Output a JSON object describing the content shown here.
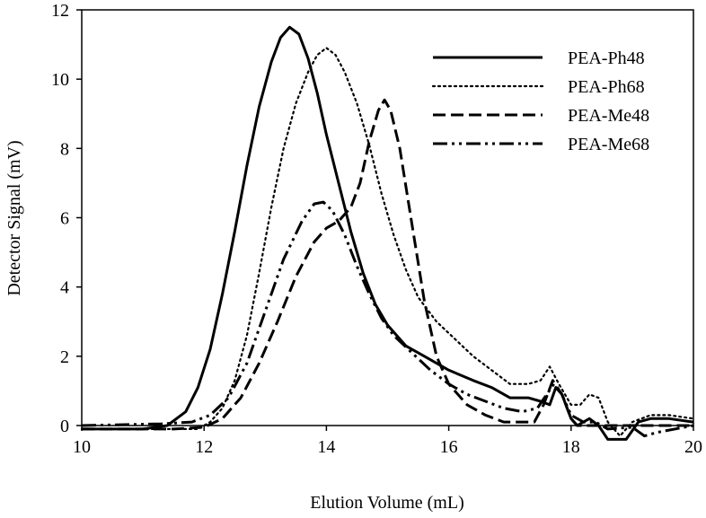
{
  "chart_data": {
    "type": "line",
    "xlabel": "Elution Volume (mL)",
    "ylabel": "Detector Signal (mV)",
    "xlim": [
      10,
      20
    ],
    "ylim": [
      0,
      12
    ],
    "xticks": [
      "10",
      "12",
      "14",
      "16",
      "18",
      "20"
    ],
    "yticks": [
      "0",
      "2",
      "4",
      "6",
      "8",
      "10",
      "12"
    ],
    "grid": false,
    "legend": "top-right",
    "series": [
      {
        "name": "PEA-Ph48",
        "style": "solid",
        "color": "#000000",
        "points": [
          [
            10.0,
            -0.1
          ],
          [
            11.0,
            -0.1
          ],
          [
            11.4,
            0.0
          ],
          [
            11.7,
            0.4
          ],
          [
            11.9,
            1.1
          ],
          [
            12.1,
            2.2
          ],
          [
            12.3,
            3.8
          ],
          [
            12.5,
            5.6
          ],
          [
            12.7,
            7.5
          ],
          [
            12.9,
            9.2
          ],
          [
            13.1,
            10.5
          ],
          [
            13.25,
            11.2
          ],
          [
            13.4,
            11.5
          ],
          [
            13.55,
            11.3
          ],
          [
            13.7,
            10.6
          ],
          [
            13.85,
            9.6
          ],
          [
            14.0,
            8.4
          ],
          [
            14.2,
            7.0
          ],
          [
            14.4,
            5.6
          ],
          [
            14.6,
            4.4
          ],
          [
            14.8,
            3.5
          ],
          [
            15.0,
            2.9
          ],
          [
            15.3,
            2.3
          ],
          [
            15.6,
            2.0
          ],
          [
            16.0,
            1.6
          ],
          [
            16.4,
            1.3
          ],
          [
            16.7,
            1.1
          ],
          [
            17.0,
            0.8
          ],
          [
            17.3,
            0.8
          ],
          [
            17.5,
            0.7
          ],
          [
            17.65,
            0.6
          ],
          [
            17.75,
            1.1
          ],
          [
            17.85,
            0.9
          ],
          [
            18.0,
            0.2
          ],
          [
            18.1,
            0.0
          ],
          [
            18.3,
            0.2
          ],
          [
            18.45,
            0.0
          ],
          [
            18.6,
            -0.4
          ],
          [
            18.9,
            -0.4
          ],
          [
            19.1,
            0.1
          ],
          [
            19.3,
            0.2
          ],
          [
            19.6,
            0.2
          ],
          [
            20.0,
            0.1
          ]
        ]
      },
      {
        "name": "PEA-Ph68",
        "style": "dotted",
        "color": "#000000",
        "points": [
          [
            10.0,
            -0.1
          ],
          [
            11.5,
            -0.1
          ],
          [
            11.9,
            -0.1
          ],
          [
            12.1,
            0.1
          ],
          [
            12.3,
            0.5
          ],
          [
            12.5,
            1.3
          ],
          [
            12.7,
            2.6
          ],
          [
            12.9,
            4.4
          ],
          [
            13.1,
            6.3
          ],
          [
            13.3,
            8.0
          ],
          [
            13.5,
            9.3
          ],
          [
            13.7,
            10.2
          ],
          [
            13.85,
            10.7
          ],
          [
            14.0,
            10.9
          ],
          [
            14.15,
            10.7
          ],
          [
            14.3,
            10.2
          ],
          [
            14.5,
            9.3
          ],
          [
            14.7,
            8.1
          ],
          [
            14.9,
            6.7
          ],
          [
            15.1,
            5.5
          ],
          [
            15.3,
            4.5
          ],
          [
            15.5,
            3.7
          ],
          [
            15.8,
            3.0
          ],
          [
            16.1,
            2.5
          ],
          [
            16.4,
            2.0
          ],
          [
            16.7,
            1.6
          ],
          [
            17.0,
            1.2
          ],
          [
            17.3,
            1.2
          ],
          [
            17.5,
            1.3
          ],
          [
            17.65,
            1.7
          ],
          [
            17.8,
            1.2
          ],
          [
            18.0,
            0.6
          ],
          [
            18.15,
            0.6
          ],
          [
            18.3,
            0.9
          ],
          [
            18.45,
            0.8
          ],
          [
            18.6,
            0.1
          ],
          [
            18.8,
            -0.3
          ],
          [
            19.0,
            0.1
          ],
          [
            19.3,
            0.3
          ],
          [
            19.6,
            0.3
          ],
          [
            20.0,
            0.2
          ]
        ]
      },
      {
        "name": "PEA-Me48",
        "style": "dashed",
        "color": "#000000",
        "points": [
          [
            10.0,
            -0.1
          ],
          [
            11.5,
            -0.1
          ],
          [
            12.0,
            -0.05
          ],
          [
            12.3,
            0.2
          ],
          [
            12.6,
            0.8
          ],
          [
            12.9,
            1.8
          ],
          [
            13.2,
            3.0
          ],
          [
            13.5,
            4.3
          ],
          [
            13.8,
            5.3
          ],
          [
            14.0,
            5.7
          ],
          [
            14.2,
            5.9
          ],
          [
            14.4,
            6.3
          ],
          [
            14.55,
            7.0
          ],
          [
            14.7,
            8.2
          ],
          [
            14.85,
            9.1
          ],
          [
            14.95,
            9.4
          ],
          [
            15.05,
            9.1
          ],
          [
            15.2,
            8.0
          ],
          [
            15.4,
            5.8
          ],
          [
            15.6,
            3.6
          ],
          [
            15.8,
            2.0
          ],
          [
            16.0,
            1.2
          ],
          [
            16.3,
            0.6
          ],
          [
            16.6,
            0.3
          ],
          [
            16.9,
            0.1
          ],
          [
            17.2,
            0.1
          ],
          [
            17.4,
            0.1
          ],
          [
            17.55,
            0.6
          ],
          [
            17.7,
            1.3
          ],
          [
            17.85,
            0.9
          ],
          [
            18.0,
            0.2
          ],
          [
            18.1,
            0.0
          ],
          [
            20.0,
            0.0
          ]
        ]
      },
      {
        "name": "PEA-Me68",
        "style": "dashdotdot",
        "color": "#000000",
        "points": [
          [
            10.0,
            0.0
          ],
          [
            11.3,
            0.05
          ],
          [
            11.8,
            0.1
          ],
          [
            12.1,
            0.3
          ],
          [
            12.4,
            0.8
          ],
          [
            12.7,
            1.8
          ],
          [
            13.0,
            3.3
          ],
          [
            13.3,
            4.8
          ],
          [
            13.6,
            5.9
          ],
          [
            13.8,
            6.4
          ],
          [
            13.95,
            6.45
          ],
          [
            14.1,
            6.2
          ],
          [
            14.3,
            5.5
          ],
          [
            14.5,
            4.6
          ],
          [
            14.7,
            3.8
          ],
          [
            14.9,
            3.1
          ],
          [
            15.1,
            2.6
          ],
          [
            15.4,
            2.1
          ],
          [
            15.7,
            1.6
          ],
          [
            16.0,
            1.2
          ],
          [
            16.3,
            0.9
          ],
          [
            16.6,
            0.7
          ],
          [
            16.9,
            0.5
          ],
          [
            17.2,
            0.4
          ],
          [
            17.45,
            0.5
          ],
          [
            17.6,
            0.9
          ],
          [
            17.72,
            1.2
          ],
          [
            17.85,
            0.9
          ],
          [
            18.0,
            0.3
          ],
          [
            18.2,
            0.1
          ],
          [
            18.4,
            0.1
          ],
          [
            18.6,
            -0.1
          ],
          [
            19.0,
            -0.05
          ],
          [
            19.2,
            -0.3
          ],
          [
            19.4,
            -0.2
          ],
          [
            20.0,
            0.0
          ]
        ]
      }
    ]
  }
}
